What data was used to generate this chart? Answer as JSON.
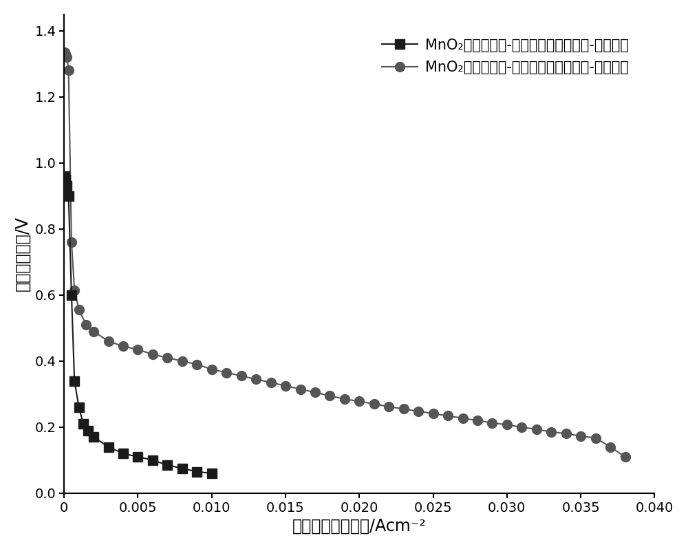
{
  "title": "",
  "xlabel": "电池放电电流密度/Acm⁻²",
  "ylabel": "电池放电电压/V",
  "xlim": [
    0,
    0.04
  ],
  "ylim": [
    0,
    1.45
  ],
  "background_color": "#ffffff",
  "series1_label": "MnO₂催化剂空气-铁电池单体放电电流-电压曲线",
  "series2_label": "MnO₂催化剂空气-铝电池单体放电电流-电压曲线",
  "series1_color": "#1a1a1a",
  "series2_color": "#555555",
  "series1_x": [
    5e-05,
    0.0001,
    0.0002,
    0.0003,
    0.0005,
    0.0007,
    0.001,
    0.0013,
    0.0016,
    0.002,
    0.003,
    0.004,
    0.005,
    0.006,
    0.007,
    0.008,
    0.009,
    0.01
  ],
  "series1_y": [
    0.96,
    0.95,
    0.93,
    0.9,
    0.6,
    0.34,
    0.26,
    0.21,
    0.19,
    0.17,
    0.14,
    0.12,
    0.11,
    0.1,
    0.085,
    0.075,
    0.065,
    0.06
  ],
  "series2_x": [
    5e-05,
    0.0001,
    0.0002,
    0.0003,
    0.0005,
    0.0007,
    0.001,
    0.0015,
    0.002,
    0.003,
    0.004,
    0.005,
    0.006,
    0.007,
    0.008,
    0.009,
    0.01,
    0.011,
    0.012,
    0.013,
    0.014,
    0.015,
    0.016,
    0.017,
    0.018,
    0.019,
    0.02,
    0.021,
    0.022,
    0.023,
    0.024,
    0.025,
    0.026,
    0.027,
    0.028,
    0.029,
    0.03,
    0.031,
    0.032,
    0.033,
    0.034,
    0.035,
    0.036,
    0.037,
    0.038
  ],
  "series2_y": [
    1.335,
    1.33,
    1.32,
    1.28,
    0.76,
    0.615,
    0.555,
    0.51,
    0.49,
    0.46,
    0.445,
    0.435,
    0.42,
    0.41,
    0.4,
    0.39,
    0.375,
    0.365,
    0.355,
    0.345,
    0.335,
    0.325,
    0.315,
    0.305,
    0.295,
    0.285,
    0.278,
    0.27,
    0.262,
    0.255,
    0.248,
    0.241,
    0.234,
    0.227,
    0.22,
    0.213,
    0.207,
    0.2,
    0.193,
    0.186,
    0.18,
    0.173,
    0.167,
    0.14,
    0.11
  ],
  "xticks": [
    0.0,
    0.005,
    0.01,
    0.015,
    0.02,
    0.025,
    0.03,
    0.035,
    0.04
  ],
  "xtick_labels": [
    "0",
    "0.005",
    "0.010",
    "0.015",
    "0.020",
    "0.025",
    "0.030",
    "0.035",
    "0.040"
  ],
  "yticks": [
    0.0,
    0.2,
    0.4,
    0.6,
    0.8,
    1.0,
    1.2,
    1.4
  ],
  "legend_fontsize": 15,
  "axis_fontsize": 17,
  "tick_fontsize": 14,
  "linewidth": 1.5,
  "marker_size": 10
}
